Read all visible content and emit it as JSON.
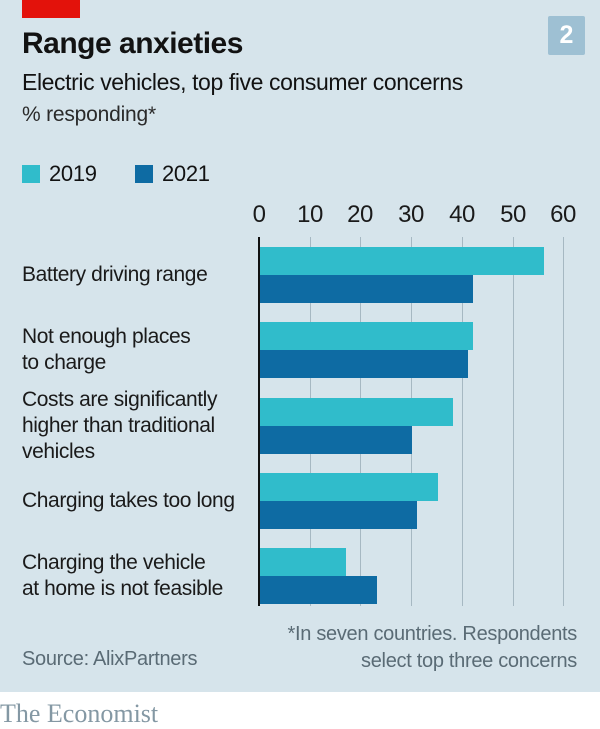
{
  "header": {
    "title": "Range anxieties",
    "subtitle": "Electric vehicles, top five consumer concerns",
    "unit_note": "% responding*",
    "figure_number": "2"
  },
  "chart_data": {
    "type": "bar",
    "orientation": "horizontal",
    "title": "Range anxieties",
    "subtitle": "Electric vehicles, top five consumer concerns",
    "xlabel": "% responding*",
    "categories": [
      "Battery driving range",
      "Not enough places to charge",
      "Costs are significantly higher than traditional vehicles",
      "Charging takes too long",
      "Charging the vehicle at home is not feasible"
    ],
    "category_lines": [
      [
        "Battery driving range"
      ],
      [
        "Not enough places",
        "to charge"
      ],
      [
        "Costs are significantly",
        "higher than traditional",
        "vehicles"
      ],
      [
        "Charging takes too long"
      ],
      [
        "Charging the vehicle",
        "at home is not feasible"
      ]
    ],
    "series": [
      {
        "name": "2019",
        "color": "#30BCCB",
        "values": [
          56,
          42,
          38,
          35,
          17
        ]
      },
      {
        "name": "2021",
        "color": "#0E6BA3",
        "values": [
          42,
          41,
          30,
          31,
          23
        ]
      }
    ],
    "xlim": [
      0,
      60
    ],
    "xticks": [
      0,
      10,
      20,
      30,
      40,
      50,
      60
    ],
    "grid": "vertical",
    "legend_position": "top-left"
  },
  "legend": {
    "items": [
      {
        "label": "2019",
        "color": "#30BCCB"
      },
      {
        "label": "2021",
        "color": "#0E6BA3"
      }
    ]
  },
  "footer": {
    "source": "Source: AlixPartners",
    "footnote_lines": [
      "*In seven countries. Respondents",
      "select top three concerns"
    ]
  },
  "branding": {
    "logo": "The Economist"
  },
  "colors": {
    "background": "#D6E4EB",
    "red_tab": "#E3120B",
    "series_2019": "#30BCCB",
    "series_2021": "#0E6BA3",
    "badge_bg": "#9EC0D3",
    "gridline": "#A6B8C2",
    "text": "#121212",
    "muted_text": "#5A6B75",
    "logo_text": "#8498A4"
  }
}
